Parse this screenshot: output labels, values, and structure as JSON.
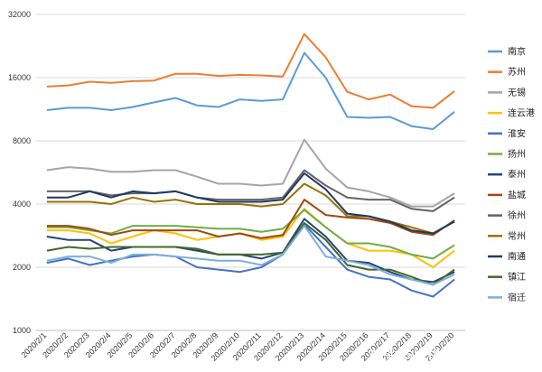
{
  "chart_data": {
    "type": "line",
    "title": "",
    "xlabel": "",
    "ylabel": "",
    "y_scale": "log2",
    "ylim": [
      1000,
      32000
    ],
    "y_ticks": [
      "1000",
      "2000",
      "4000",
      "8000",
      "16000",
      "32000"
    ],
    "grid": "horizontal",
    "legend_position": "right",
    "categories": [
      "2020/2/1",
      "2020/2/2",
      "2020/2/3",
      "2020/2/4",
      "2020/2/5",
      "2020/2/6",
      "2020/2/7",
      "2020/2/8",
      "2020/2/9",
      "2020/2/10",
      "2020/2/11",
      "2020/2/12",
      "2020/2/13",
      "2020/2/14",
      "2020/2/15",
      "2020/2/16",
      "2020/2/17",
      "2020/2/18",
      "2020/2/19",
      "2020/2/20"
    ],
    "series": [
      {
        "name": "南京",
        "color": "#5b9bd5",
        "values": [
          11200,
          11500,
          11500,
          11200,
          11600,
          12200,
          12800,
          11800,
          11600,
          12600,
          12400,
          12600,
          21000,
          16000,
          10400,
          10300,
          10400,
          9400,
          9100,
          11000
        ]
      },
      {
        "name": "苏州",
        "color": "#ed7d31",
        "values": [
          14500,
          14700,
          15300,
          15100,
          15400,
          15500,
          16700,
          16700,
          16300,
          16500,
          16400,
          16200,
          25800,
          20000,
          13700,
          12600,
          13300,
          11700,
          11500,
          13800
        ]
      },
      {
        "name": "无锡",
        "color": "#a5a5a5",
        "values": [
          5800,
          6000,
          5900,
          5700,
          5700,
          5800,
          5800,
          5400,
          5000,
          5000,
          4900,
          5000,
          8100,
          5900,
          4800,
          4600,
          4300,
          3900,
          3900,
          4500
        ]
      },
      {
        "name": "连云港",
        "color": "#ffc000",
        "values": [
          3000,
          3000,
          2900,
          2600,
          2800,
          3000,
          2900,
          2700,
          2800,
          2900,
          2700,
          2800,
          3800,
          3100,
          2600,
          2400,
          2400,
          2300,
          2000,
          2400
        ]
      },
      {
        "name": "淮安",
        "color": "#4472c4",
        "values": [
          2100,
          2200,
          2050,
          2150,
          2250,
          2300,
          2250,
          2000,
          1950,
          1900,
          2000,
          2300,
          3200,
          2500,
          1950,
          1800,
          1750,
          1550,
          1450,
          1750
        ]
      },
      {
        "name": "扬州",
        "color": "#70ad47",
        "values": [
          3100,
          3100,
          3000,
          2900,
          3150,
          3150,
          3150,
          3100,
          3050,
          3050,
          2950,
          3050,
          3750,
          3100,
          2600,
          2600,
          2500,
          2300,
          2200,
          2550
        ]
      },
      {
        "name": "泰州",
        "color": "#264478",
        "values": [
          2800,
          2700,
          2700,
          2400,
          2500,
          2500,
          2500,
          2400,
          2300,
          2300,
          2200,
          2350,
          3400,
          2800,
          2150,
          2100,
          1900,
          1750,
          1700,
          1900
        ]
      },
      {
        "name": "盐城",
        "color": "#9e480e",
        "values": [
          3150,
          3150,
          3050,
          2850,
          3000,
          3000,
          3000,
          3000,
          2800,
          2900,
          2750,
          2850,
          4200,
          3550,
          3450,
          3400,
          3250,
          2950,
          2850,
          3350
        ]
      },
      {
        "name": "徐州",
        "color": "#636363",
        "values": [
          4600,
          4600,
          4600,
          4400,
          4500,
          4500,
          4600,
          4300,
          4200,
          4200,
          4200,
          4300,
          5800,
          4900,
          4300,
          4200,
          4200,
          3800,
          3700,
          4300
        ]
      },
      {
        "name": "常州",
        "color": "#997300",
        "values": [
          4100,
          4100,
          4100,
          4000,
          4300,
          4100,
          4200,
          4000,
          4000,
          4000,
          3900,
          4000,
          5000,
          4400,
          3500,
          3500,
          3300,
          3100,
          2900,
          3300
        ]
      },
      {
        "name": "南通",
        "color": "#203864",
        "values": [
          4300,
          4300,
          4600,
          4300,
          4600,
          4500,
          4600,
          4300,
          4100,
          4100,
          4100,
          4200,
          5600,
          4700,
          3600,
          3500,
          3300,
          3000,
          2900,
          3300
        ]
      },
      {
        "name": "镇江",
        "color": "#43682b",
        "values": [
          2400,
          2500,
          2450,
          2500,
          2500,
          2500,
          2500,
          2450,
          2300,
          2300,
          2300,
          2350,
          3250,
          2700,
          2050,
          1950,
          1950,
          1800,
          1650,
          1950
        ]
      },
      {
        "name": "宿迁",
        "color": "#7cafdd",
        "values": [
          2150,
          2250,
          2250,
          2100,
          2300,
          2300,
          2250,
          2200,
          2150,
          2150,
          2050,
          2300,
          3150,
          2250,
          2150,
          2050,
          1850,
          1750,
          1650,
          1850
        ]
      }
    ]
  },
  "watermark": "知乎 @资格拉底大王"
}
